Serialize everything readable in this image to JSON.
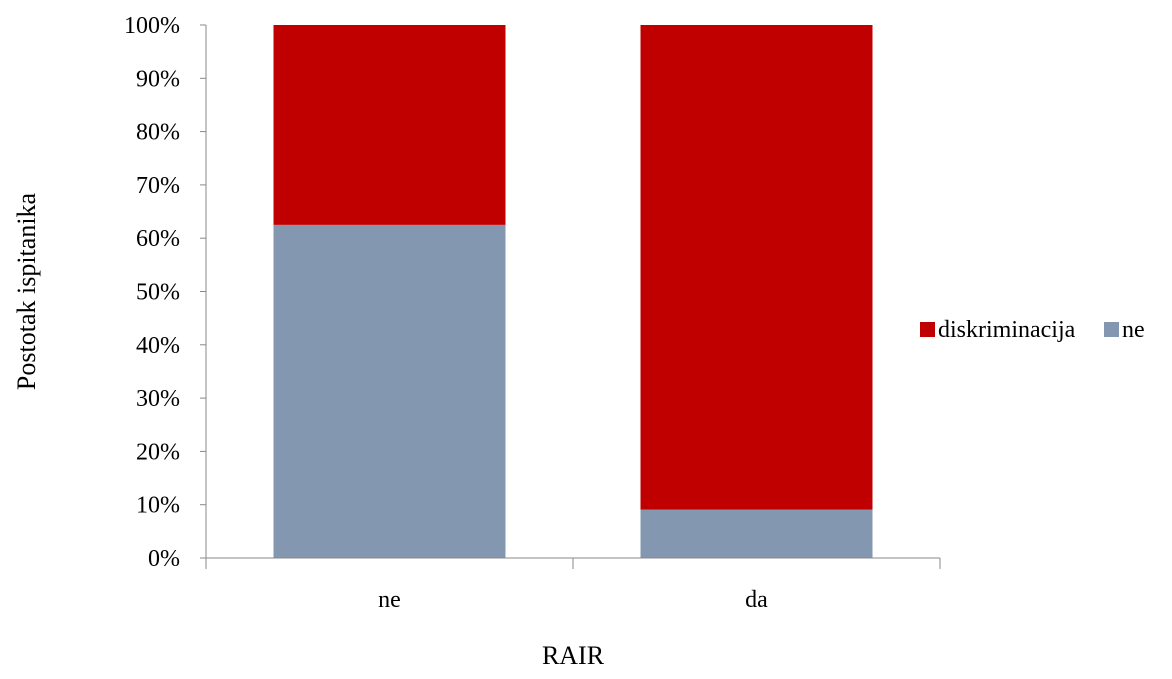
{
  "chart_data": {
    "type": "bar",
    "stacked": true,
    "categories": [
      "ne",
      "da"
    ],
    "series": [
      {
        "name": "ne",
        "values": [
          62.5,
          9.1
        ],
        "color": "#8497B0"
      },
      {
        "name": "diskriminacija",
        "values": [
          37.5,
          90.9
        ],
        "color": "#C00000"
      }
    ],
    "title": "",
    "xlabel": "RAIR",
    "ylabel": "Postotak ispitanika",
    "ylim": [
      0,
      100
    ],
    "yticks": [
      "0%",
      "10%",
      "20%",
      "30%",
      "40%",
      "50%",
      "60%",
      "70%",
      "80%",
      "90%",
      "100%"
    ],
    "grid": false,
    "legend": {
      "position": "right",
      "entries": [
        {
          "label": "diskriminacija",
          "color": "#C00000"
        },
        {
          "label": "ne",
          "color": "#8497B0"
        }
      ]
    }
  }
}
